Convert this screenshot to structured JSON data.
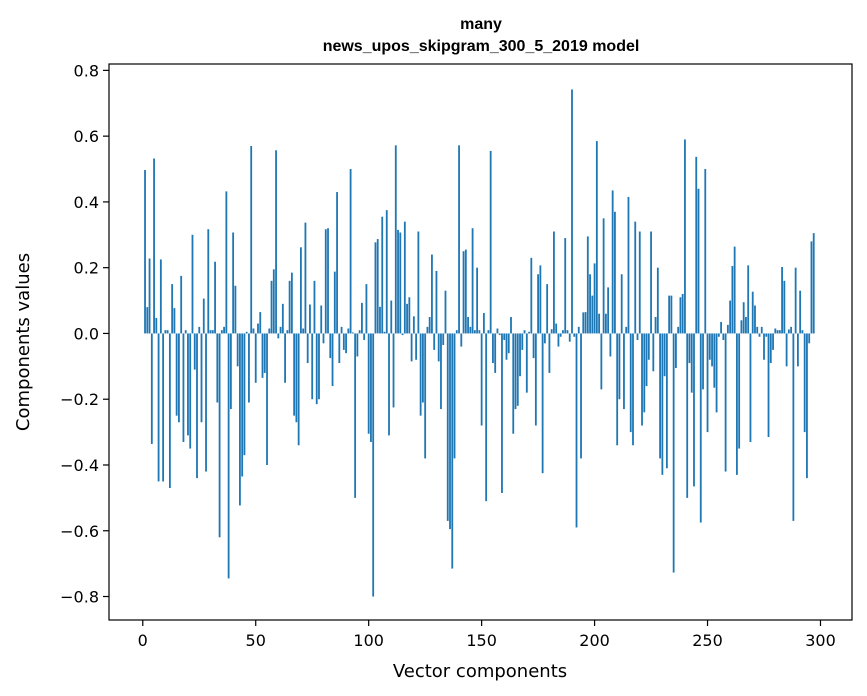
{
  "chart_data": {
    "type": "bar",
    "title_lines": [
      "many",
      "news_upos_skipgram_300_5_2019 model"
    ],
    "xlabel": "Vector components",
    "ylabel": "Components values",
    "xlim": [
      -14.95,
      313.95
    ],
    "ylim": [
      -0.8714,
      0.8194
    ],
    "x_ticks": [
      0,
      50,
      100,
      150,
      200,
      250,
      300
    ],
    "y_ticks": [
      -0.8,
      -0.6,
      -0.4,
      -0.2,
      0.0,
      0.2,
      0.4,
      0.6,
      0.8
    ],
    "y_tick_labels": [
      "−0.8",
      "−0.6",
      "−0.4",
      "−0.2",
      "0.0",
      "0.2",
      "0.4",
      "0.6",
      "0.8"
    ],
    "bar_color": "#1f77b4",
    "series_name": "many",
    "x_start": 1,
    "values": [
      0.497,
      0.08,
      0.228,
      -0.336,
      0.532,
      0.047,
      -0.45,
      0.225,
      -0.45,
      0.01,
      0.01,
      -0.47,
      0.15,
      0.077,
      -0.25,
      -0.27,
      0.175,
      -0.33,
      0.01,
      -0.31,
      -0.35,
      0.3,
      -0.11,
      -0.44,
      0.02,
      -0.27,
      0.106,
      -0.42,
      0.317,
      0.01,
      0.01,
      0.218,
      -0.21,
      -0.62,
      0.01,
      0.02,
      0.432,
      -0.745,
      -0.23,
      0.307,
      0.145,
      -0.1,
      -0.523,
      -0.435,
      -0.37,
      0.005,
      -0.21,
      0.57,
      0.015,
      -0.15,
      0.03,
      0.065,
      -0.135,
      -0.12,
      -0.4,
      0.015,
      0.16,
      0.195,
      0.557,
      -0.015,
      0.02,
      0.09,
      -0.15,
      0.01,
      0.16,
      0.185,
      -0.25,
      -0.27,
      -0.34,
      0.262,
      0.015,
      0.337,
      -0.09,
      0.088,
      -0.2,
      0.16,
      -0.215,
      -0.2,
      0.085,
      -0.03,
      0.317,
      0.32,
      -0.075,
      -0.16,
      0.188,
      0.43,
      -0.09,
      0.02,
      -0.05,
      -0.06,
      0.015,
      0.5,
      0.003,
      -0.5,
      -0.07,
      0.01,
      0.093,
      -0.02,
      0.15,
      -0.305,
      -0.33,
      -0.8,
      0.277,
      0.287,
      0.081,
      0.355,
      0.005,
      0.375,
      -0.31,
      0.1,
      -0.225,
      0.572,
      0.315,
      0.307,
      -0.005,
      0.34,
      0.09,
      0.11,
      -0.085,
      0.052,
      -0.08,
      0.31,
      -0.25,
      -0.21,
      -0.38,
      0.02,
      0.05,
      0.24,
      -0.05,
      0.19,
      -0.085,
      -0.23,
      -0.035,
      0.13,
      -0.57,
      -0.595,
      -0.715,
      -0.38,
      0.01,
      0.572,
      -0.04,
      0.25,
      0.255,
      0.05,
      0.02,
      0.32,
      0.01,
      0.2,
      0.01,
      -0.28,
      0.062,
      -0.51,
      0.01,
      0.555,
      -0.09,
      -0.12,
      0.015,
      -0.005,
      -0.485,
      -0.02,
      -0.08,
      -0.06,
      0.05,
      -0.305,
      -0.23,
      -0.22,
      -0.13,
      -0.05,
      0.01,
      -0.18,
      0.005,
      0.23,
      -0.075,
      -0.28,
      0.18,
      0.207,
      -0.425,
      -0.03,
      0.15,
      -0.12,
      0.013,
      0.31,
      0.03,
      -0.04,
      -0.01,
      0.01,
      0.29,
      0.01,
      -0.025,
      0.742,
      -0.01,
      -0.59,
      0.02,
      -0.38,
      0.064,
      0.065,
      0.295,
      0.18,
      0.115,
      0.213,
      0.585,
      0.06,
      -0.17,
      0.35,
      0.06,
      0.14,
      -0.07,
      0.435,
      0.37,
      -0.34,
      -0.2,
      0.18,
      -0.23,
      0.02,
      0.415,
      -0.3,
      -0.34,
      0.34,
      -0.02,
      0.31,
      -0.28,
      -0.24,
      -0.16,
      -0.08,
      0.31,
      -0.115,
      0.05,
      0.2,
      -0.38,
      -0.43,
      -0.13,
      -0.41,
      0.115,
      0.115,
      -0.727,
      -0.105,
      0.02,
      0.11,
      0.12,
      0.59,
      -0.5,
      -0.09,
      -0.18,
      -0.465,
      0.537,
      0.44,
      -0.575,
      -0.17,
      0.5,
      -0.3,
      -0.08,
      -0.1,
      -0.165,
      -0.24,
      -0.01,
      0.035,
      -0.02,
      -0.42,
      0.026,
      0.1,
      0.205,
      0.264,
      -0.43,
      -0.35,
      0.04,
      0.095,
      0.05,
      0.207,
      -0.33,
      0.127,
      0.085,
      0.02,
      -0.01,
      0.02,
      -0.08,
      -0.01,
      -0.315,
      -0.09,
      -0.05,
      0.015,
      0.01,
      0.01,
      0.202,
      0.16,
      -0.1,
      0.012,
      0.02,
      -0.57,
      0.2,
      -0.1,
      0.13,
      0.01,
      -0.3,
      -0.44,
      -0.03,
      0.28,
      0.305
    ]
  }
}
